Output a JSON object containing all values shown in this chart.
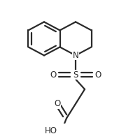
{
  "background_color": "#ffffff",
  "line_color": "#2a2a2a",
  "line_width": 1.6,
  "figsize": [
    1.7,
    1.92
  ],
  "dpi": 100,
  "xlim": [
    0,
    170
  ],
  "ylim": [
    0,
    192
  ],
  "use_rdkit": true
}
